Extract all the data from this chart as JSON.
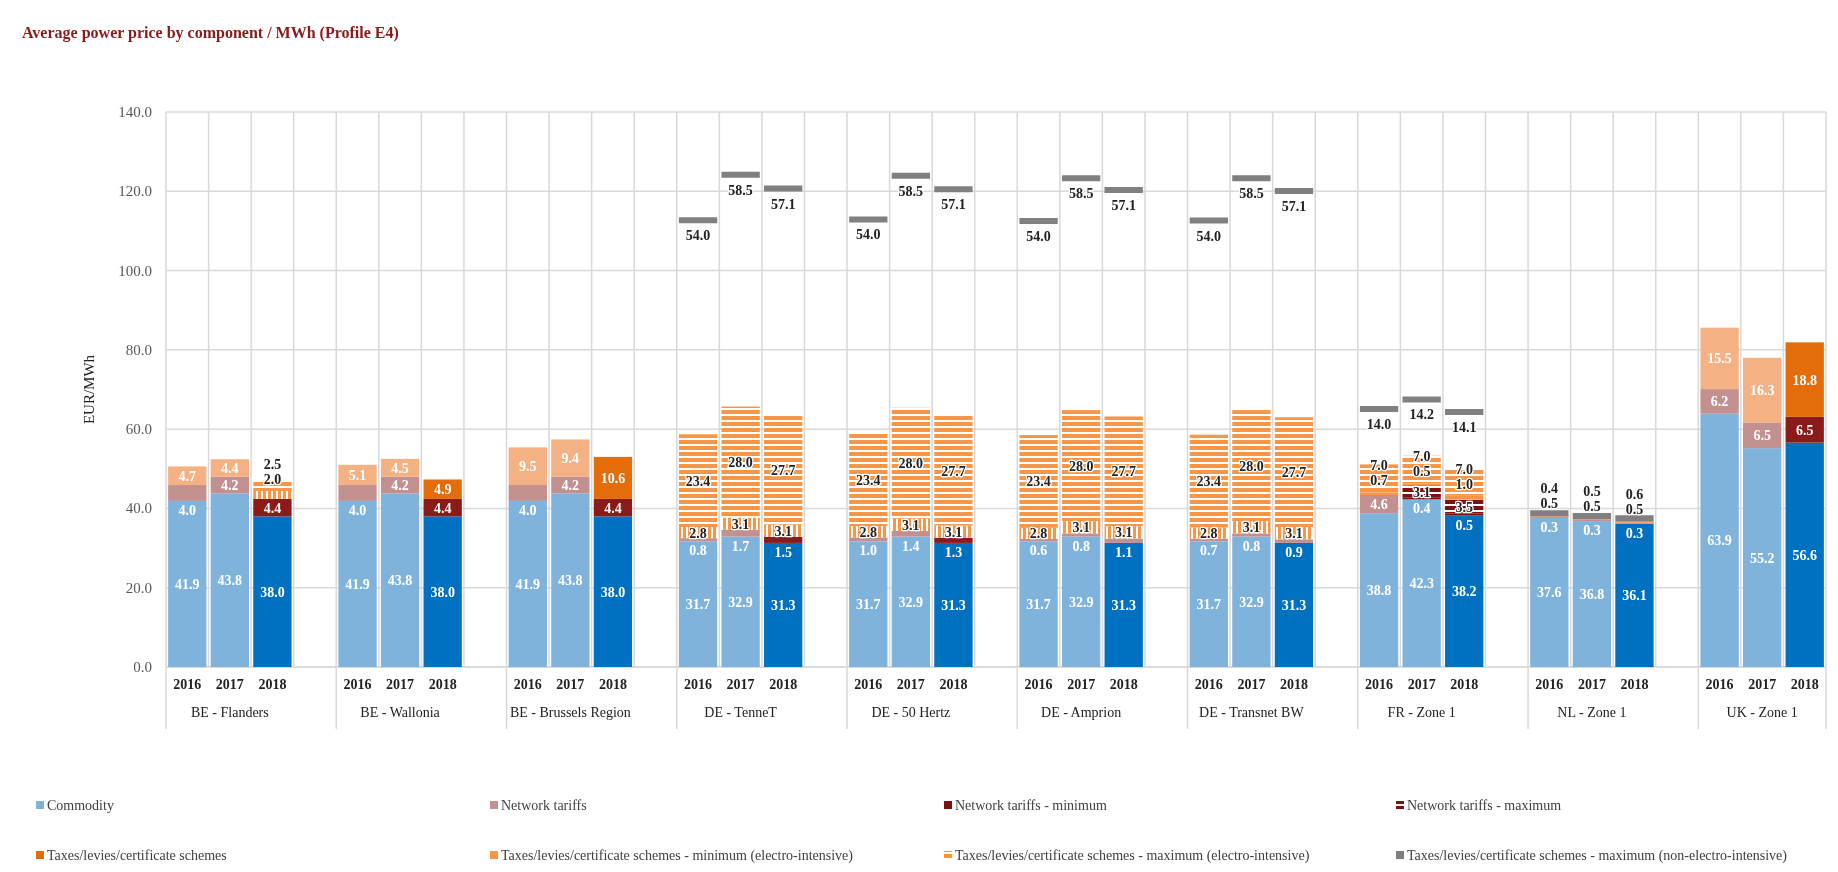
{
  "chart_data": {
    "type": "bar",
    "stacked": true,
    "title": "Average power price by component / MWh (Profile E4)",
    "ylabel": "EUR/MWh",
    "categories": [
      "2016",
      "2017",
      "2018",
      null,
      "2016",
      "2017",
      "2018",
      null,
      "2016",
      "2017",
      "2018",
      null,
      "2016",
      "2017",
      "2018",
      null,
      "2016",
      "2017",
      "2018",
      null,
      "2016",
      "2017",
      "2018",
      null,
      "2016",
      "2017",
      "2018",
      null,
      "2016",
      "2017",
      "2018",
      null,
      "2016",
      "2017",
      "2018",
      null,
      "2016",
      "2017",
      "2018"
    ],
    "annotations": [
      "BE - Flanders",
      "BE - Wallonia",
      "BE - Brussels Region",
      "DE - TenneT",
      "DE - 50 Hertz",
      "DE - Amprion",
      "DE - Transnet BW",
      "FR - Zone 1",
      "NL - Zone 1",
      "UK - Zone 1"
    ],
    "ylim": [
      0,
      140
    ],
    "yticks": [
      {
        "value": 0,
        "label": "0.0"
      },
      {
        "value": 20,
        "label": "20.0"
      },
      {
        "value": 40,
        "label": "40.0"
      },
      {
        "value": 60,
        "label": "60.0"
      },
      {
        "value": 80,
        "label": "80.0"
      },
      {
        "value": 100,
        "label": "100.0"
      },
      {
        "value": 120,
        "label": "120.0"
      },
      {
        "value": 140,
        "label": "140.0"
      }
    ],
    "grid": true,
    "legend": "bottom",
    "series": [
      {
        "name": "Commodity",
        "color": "#7fb3dc",
        "colors": [
          "#7fb3dc",
          "#7fb3dc",
          "#0070c0",
          null,
          "#7fb3dc",
          "#7fb3dc",
          "#0070c0",
          null,
          "#7fb3dc",
          "#7fb3dc",
          "#0070c0",
          null,
          "#7fb3dc",
          "#7fb3dc",
          "#0070c0",
          null,
          "#7fb3dc",
          "#7fb3dc",
          "#0070c0",
          null,
          "#7fb3dc",
          "#7fb3dc",
          "#0070c0",
          null,
          "#7fb3dc",
          "#7fb3dc",
          "#0070c0",
          null,
          "#7fb3dc",
          "#7fb3dc",
          "#0070c0",
          null,
          "#7fb3dc",
          "#7fb3dc",
          "#0070c0",
          null,
          "#7fb3dc",
          "#7fb3dc",
          "#0070c0"
        ],
        "values": [
          41.9,
          43.8,
          38.0,
          null,
          41.9,
          43.8,
          38.0,
          null,
          41.9,
          43.8,
          38.0,
          null,
          31.7,
          32.9,
          31.3,
          null,
          31.7,
          32.9,
          31.3,
          null,
          31.7,
          32.9,
          31.3,
          null,
          31.7,
          32.9,
          31.3,
          null,
          38.8,
          42.3,
          38.2,
          null,
          37.6,
          36.8,
          36.1,
          null,
          63.9,
          55.2,
          56.6
        ],
        "value_labels": [
          "41.9",
          "43.8",
          "38.0",
          null,
          "41.9",
          "43.8",
          "38.0",
          null,
          "41.9",
          "43.8",
          "38.0",
          null,
          "31.7",
          "32.9",
          "31.3",
          null,
          "31.7",
          "32.9",
          "31.3",
          null,
          "31.7",
          "32.9",
          "31.3",
          null,
          "31.7",
          "32.9",
          "31.3",
          null,
          "38.8",
          "42.3",
          "38.2",
          null,
          "37.6",
          "36.8",
          "36.1",
          null,
          "63.9",
          "55.2",
          "56.6"
        ]
      },
      {
        "name": "Network tariffs",
        "color": "#c39090",
        "colors": [
          "#c39090",
          "#c39090",
          "#8b1a1a",
          null,
          "#c39090",
          "#c39090",
          "#8b1a1a",
          null,
          "#c39090",
          "#c39090",
          "#8b1a1a",
          null,
          "#c39090",
          "#c39090",
          "#8b1a1a",
          null,
          "#c39090",
          "#c39090",
          "#8b1a1a",
          null,
          "#c39090",
          "#c39090",
          "#c39090",
          null,
          "#c39090",
          "#c39090",
          "#c39090",
          null,
          "#c39090",
          null,
          null,
          null,
          "#c39090",
          "#c39090",
          "#c39090",
          null,
          "#c39090",
          "#c39090",
          "#8b1a1a"
        ],
        "values": [
          4.0,
          4.2,
          4.4,
          null,
          4.0,
          4.2,
          4.4,
          null,
          4.0,
          4.2,
          4.4,
          null,
          0.8,
          1.7,
          1.5,
          null,
          1.0,
          1.4,
          1.3,
          null,
          0.6,
          0.8,
          1.1,
          null,
          0.7,
          0.8,
          0.9,
          null,
          4.6,
          null,
          null,
          null,
          0.3,
          0.3,
          0.3,
          null,
          6.2,
          6.5,
          6.5
        ],
        "value_labels": [
          "4.0",
          "4.2",
          "4.4",
          null,
          "4.0",
          "4.2",
          "4.4",
          null,
          "4.0",
          "4.2",
          "4.4",
          null,
          "0.8",
          "1.7",
          "1.5",
          null,
          "1.0",
          "1.4",
          "1.3",
          null,
          "0.6",
          "0.8",
          "1.1",
          null,
          "0.7",
          "0.8",
          "0.9",
          null,
          "4.6",
          null,
          null,
          null,
          "0.3",
          "0.3",
          "0.3",
          null,
          "6.2",
          "6.5",
          "6.5"
        ]
      },
      {
        "name": "Network tariffs - minimum",
        "color": "#7f1010",
        "values": [
          null,
          null,
          null,
          null,
          null,
          null,
          null,
          null,
          null,
          null,
          null,
          null,
          null,
          null,
          null,
          null,
          null,
          null,
          null,
          null,
          null,
          null,
          null,
          null,
          null,
          null,
          null,
          null,
          null,
          0.4,
          0.5,
          null,
          null,
          null,
          null,
          null,
          null,
          null,
          null
        ],
        "value_labels": [
          null,
          null,
          null,
          null,
          null,
          null,
          null,
          null,
          null,
          null,
          null,
          null,
          null,
          null,
          null,
          null,
          null,
          null,
          null,
          null,
          null,
          null,
          null,
          null,
          null,
          null,
          null,
          null,
          null,
          "0.4",
          "0.5",
          null,
          null,
          null,
          null,
          null,
          null,
          null,
          null
        ]
      },
      {
        "name": "Network tariffs - maximum",
        "color": "#7f1010",
        "values": [
          null,
          null,
          null,
          null,
          null,
          null,
          null,
          null,
          null,
          null,
          null,
          null,
          null,
          null,
          null,
          null,
          null,
          null,
          null,
          null,
          null,
          null,
          null,
          null,
          null,
          null,
          null,
          null,
          null,
          3.1,
          3.5,
          null,
          null,
          null,
          null,
          null,
          null,
          null,
          null
        ],
        "value_labels": [
          null,
          null,
          null,
          null,
          null,
          null,
          null,
          null,
          null,
          null,
          null,
          null,
          null,
          null,
          null,
          null,
          null,
          null,
          null,
          null,
          null,
          null,
          null,
          null,
          null,
          null,
          null,
          null,
          null,
          "3.1",
          "3.5",
          null,
          null,
          null,
          null,
          null,
          null,
          null,
          null
        ]
      },
      {
        "name": "Taxes/levies/certificate schemes",
        "color": "#e46c0a",
        "colors": [
          "#f4b183",
          "#f4b183",
          null,
          null,
          "#f4b183",
          "#f4b183",
          "#e46c0a",
          null,
          "#f4b183",
          "#f4b183",
          "#e46c0a",
          null,
          null,
          null,
          null,
          null,
          null,
          null,
          null,
          null,
          null,
          null,
          null,
          null,
          null,
          null,
          null,
          null,
          null,
          null,
          null,
          null,
          null,
          null,
          null,
          null,
          "#f4b183",
          "#f4b183",
          "#e46c0a"
        ],
        "values": [
          4.7,
          4.4,
          null,
          null,
          5.1,
          4.5,
          4.9,
          null,
          9.5,
          9.4,
          10.6,
          null,
          null,
          null,
          null,
          null,
          null,
          null,
          null,
          null,
          null,
          null,
          null,
          null,
          null,
          null,
          null,
          null,
          null,
          null,
          null,
          null,
          null,
          null,
          null,
          null,
          15.5,
          16.3,
          18.8
        ],
        "value_labels": [
          "4.7",
          "4.4",
          null,
          null,
          "5.1",
          "4.5",
          "4.9",
          null,
          "9.5",
          "9.4",
          "10.6",
          null,
          null,
          null,
          null,
          null,
          null,
          null,
          null,
          null,
          null,
          null,
          null,
          null,
          null,
          null,
          null,
          null,
          null,
          null,
          null,
          null,
          null,
          null,
          null,
          null,
          "15.5",
          "16.3",
          "18.8"
        ]
      },
      {
        "name": "Taxes/levies/certificate schemes - minimum (electro-intensive)",
        "color": "#f79646",
        "values": [
          null,
          null,
          2.0,
          null,
          null,
          null,
          null,
          null,
          null,
          null,
          null,
          null,
          2.8,
          3.1,
          3.1,
          null,
          2.8,
          3.1,
          3.1,
          null,
          2.8,
          3.1,
          3.1,
          null,
          2.8,
          3.1,
          3.1,
          null,
          0.7,
          0.5,
          1.0,
          null,
          0.5,
          0.5,
          0.5,
          null,
          null,
          null,
          null
        ],
        "value_labels": [
          null,
          null,
          "2.0",
          null,
          null,
          null,
          null,
          null,
          null,
          null,
          null,
          null,
          "2.8",
          "3.1",
          "3.1",
          null,
          "2.8",
          "3.1",
          "3.1",
          null,
          "2.8",
          "3.1",
          "3.1",
          null,
          "2.8",
          "3.1",
          "3.1",
          null,
          "0.7",
          "0.5",
          "1.0",
          null,
          "0.5",
          "0.5",
          "0.5",
          null,
          null,
          null,
          null
        ]
      },
      {
        "name": "Taxes/levies/certificate schemes - maximum (electro-intensive)",
        "color": "#f79646",
        "values": [
          null,
          null,
          2.5,
          null,
          null,
          null,
          null,
          null,
          null,
          null,
          null,
          null,
          23.4,
          28.0,
          27.7,
          null,
          23.4,
          28.0,
          27.7,
          null,
          23.4,
          28.0,
          27.7,
          null,
          23.4,
          28.0,
          27.7,
          null,
          7.0,
          7.0,
          7.0,
          null,
          null,
          null,
          null,
          null,
          null,
          null,
          null
        ],
        "value_labels": [
          null,
          null,
          "2.5",
          null,
          null,
          null,
          null,
          null,
          null,
          null,
          null,
          null,
          "23.4",
          "28.0",
          "27.7",
          null,
          "23.4",
          "28.0",
          "27.7",
          null,
          "23.4",
          "28.0",
          "27.7",
          null,
          "23.4",
          "28.0",
          "27.7",
          null,
          "7.0",
          "7.0",
          "7.0",
          null,
          null,
          null,
          null,
          null,
          null,
          null,
          null
        ]
      },
      {
        "name": "Taxes/levies/certificate schemes - maximum (non-electro-intensive)",
        "color": "#808080",
        "values": [
          null,
          null,
          null,
          null,
          null,
          null,
          null,
          null,
          null,
          null,
          null,
          null,
          54.0,
          58.5,
          57.1,
          null,
          54.0,
          58.5,
          57.1,
          null,
          54.0,
          58.5,
          57.1,
          null,
          54.0,
          58.5,
          57.1,
          null,
          14.0,
          14.2,
          14.1,
          null,
          0.4,
          0.5,
          0.6,
          null,
          null,
          null,
          null
        ],
        "value_labels": [
          null,
          null,
          null,
          null,
          null,
          null,
          null,
          null,
          null,
          null,
          null,
          null,
          "54.0",
          "58.5",
          "57.1",
          null,
          "54.0",
          "58.5",
          "57.1",
          null,
          "54.0",
          "58.5",
          "57.1",
          null,
          "54.0",
          "58.5",
          "57.1",
          null,
          "14.0",
          "14.2",
          "14.1",
          null,
          "0.4",
          "0.5",
          "0.6",
          null,
          null,
          null,
          null
        ]
      }
    ]
  }
}
